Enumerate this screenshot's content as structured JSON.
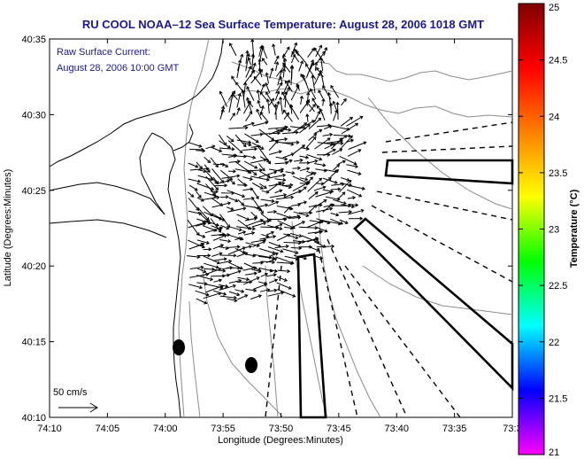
{
  "title": "RU COOL  NOAA–12  Sea Surface Temperature:  August 28, 2006 1018 GMT",
  "annotation": {
    "line1": "Raw Surface Current:",
    "line2": "August 28, 2006 10:00 GMT"
  },
  "scale_label": "50 cm/s",
  "map": {
    "xlabel": "Longitude (Degrees:Minutes)",
    "ylabel": "Latitude (Degrees:Minutes)",
    "x_ticks": [
      "74:10",
      "74:05",
      "74:00",
      "73:55",
      "73:50",
      "73:45",
      "73:40",
      "73:35",
      "73:3"
    ],
    "y_ticks": [
      "40:35",
      "40:30",
      "40:25",
      "40:20",
      "40:15",
      "40:10"
    ],
    "xlim": [
      "74:10",
      "73:30"
    ],
    "ylim": [
      "40:10",
      "40:35"
    ]
  },
  "colorbar": {
    "label": "Temperature (°C)",
    "ticks": [
      "25",
      "24.5",
      "24",
      "23.5",
      "23",
      "22.5",
      "22",
      "21.5",
      "21"
    ],
    "range": [
      21,
      25
    ],
    "colormap": [
      "#ff00ff",
      "#0000ff",
      "#00ffff",
      "#00ff00",
      "#ffff00",
      "#ff8000",
      "#ff0000",
      "#800000"
    ]
  },
  "colors": {
    "title_text": "#1a1a8c",
    "annotation_text": "#1a1a8c",
    "coastline": "#000000",
    "bathymetry": "#8c8c8c"
  }
}
